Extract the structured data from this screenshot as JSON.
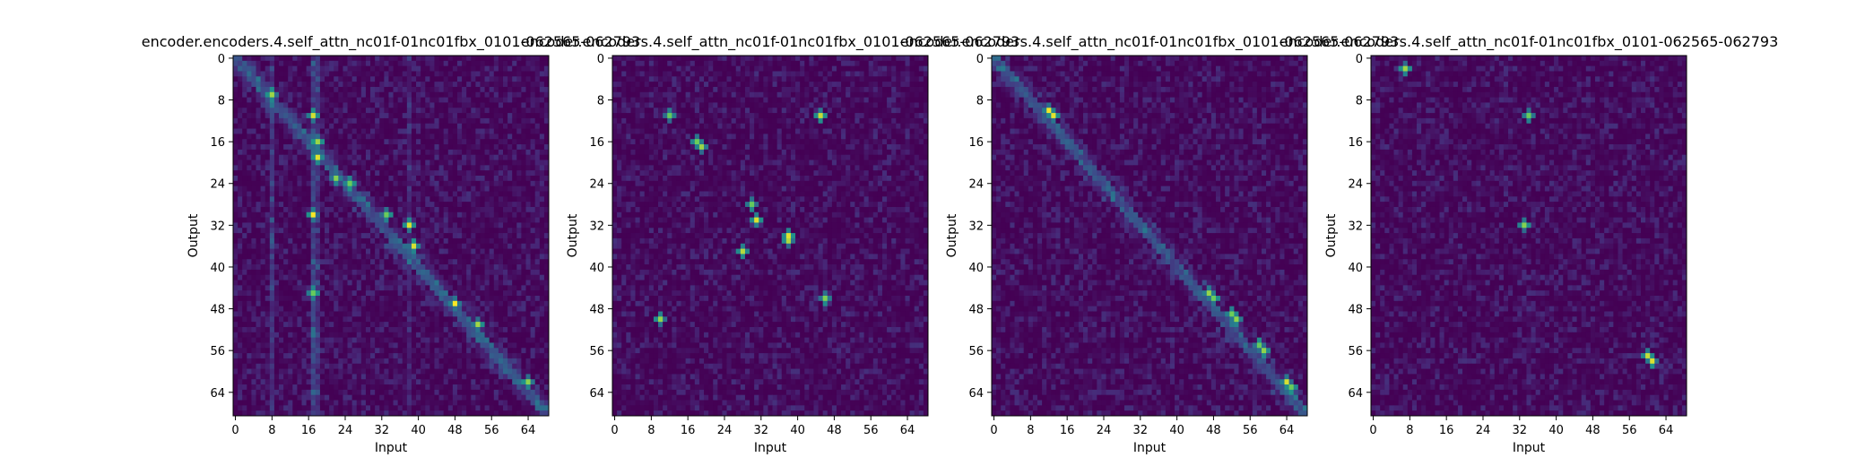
{
  "chart_data": [
    {
      "type": "heatmap",
      "title": "encoder.encoders.4.self_attn_nc01f-01nc01fbx_0101-062565-062793",
      "xlabel": "Input",
      "ylabel": "Output",
      "xticks": [
        0,
        8,
        16,
        24,
        32,
        40,
        48,
        56,
        64
      ],
      "yticks": [
        0,
        8,
        16,
        24,
        32,
        40,
        48,
        56,
        64
      ],
      "xlim": [
        0,
        69
      ],
      "ylim": [
        0,
        69
      ],
      "colormap": "viridis",
      "pattern": "diagonal with strong columns near input 8 and 17",
      "hotspots": [
        [
          8,
          7
        ],
        [
          17,
          11
        ],
        [
          18,
          16
        ],
        [
          18,
          19
        ],
        [
          22,
          23
        ],
        [
          25,
          24
        ],
        [
          33,
          30
        ],
        [
          38,
          32
        ],
        [
          39,
          36
        ],
        [
          48,
          47
        ],
        [
          53,
          51
        ],
        [
          64,
          62
        ],
        [
          17,
          45
        ],
        [
          17,
          30
        ]
      ]
    },
    {
      "type": "heatmap",
      "title": "encoder.encoders.4.self_attn_nc01f-01nc01fbx_0101-062565-062793",
      "xlabel": "Input",
      "ylabel": "Output",
      "xticks": [
        0,
        8,
        16,
        24,
        32,
        40,
        48,
        56,
        64
      ],
      "yticks": [
        0,
        8,
        16,
        24,
        32,
        40,
        48,
        56,
        64
      ],
      "xlim": [
        0,
        69
      ],
      "ylim": [
        0,
        69
      ],
      "colormap": "viridis",
      "pattern": "scattered with hotspots",
      "hotspots": [
        [
          18,
          16
        ],
        [
          19,
          17
        ],
        [
          30,
          28
        ],
        [
          31,
          31
        ],
        [
          38,
          34
        ],
        [
          38,
          35
        ],
        [
          12,
          11
        ],
        [
          46,
          46
        ],
        [
          10,
          50
        ],
        [
          28,
          37
        ],
        [
          45,
          11
        ]
      ]
    },
    {
      "type": "heatmap",
      "title": "encoder.encoders.4.self_attn_nc01f-01nc01fbx_0101-062565-062793",
      "xlabel": "Input",
      "ylabel": "Output",
      "xticks": [
        0,
        8,
        16,
        24,
        32,
        40,
        48,
        56,
        64
      ],
      "yticks": [
        0,
        8,
        16,
        24,
        32,
        40,
        48,
        56,
        64
      ],
      "xlim": [
        0,
        69
      ],
      "ylim": [
        0,
        69
      ],
      "colormap": "viridis",
      "pattern": "strong diagonal",
      "hotspots": [
        [
          12,
          10
        ],
        [
          13,
          11
        ],
        [
          47,
          45
        ],
        [
          48,
          46
        ],
        [
          52,
          49
        ],
        [
          53,
          50
        ],
        [
          58,
          55
        ],
        [
          59,
          56
        ],
        [
          64,
          62
        ],
        [
          65,
          63
        ]
      ]
    },
    {
      "type": "heatmap",
      "title": "encoder.encoders.4.self_attn_nc01f-01nc01fbx_0101-062565-062793",
      "xlabel": "Input",
      "ylabel": "Output",
      "xticks": [
        0,
        8,
        16,
        24,
        32,
        40,
        48,
        56,
        64
      ],
      "yticks": [
        0,
        8,
        16,
        24,
        32,
        40,
        48,
        56,
        64
      ],
      "xlim": [
        0,
        69
      ],
      "ylim": [
        0,
        69
      ],
      "colormap": "viridis",
      "pattern": "sparse with one hotspot",
      "hotspots": [
        [
          60,
          57
        ],
        [
          61,
          58
        ],
        [
          34,
          11
        ],
        [
          33,
          32
        ],
        [
          7,
          2
        ]
      ]
    }
  ]
}
